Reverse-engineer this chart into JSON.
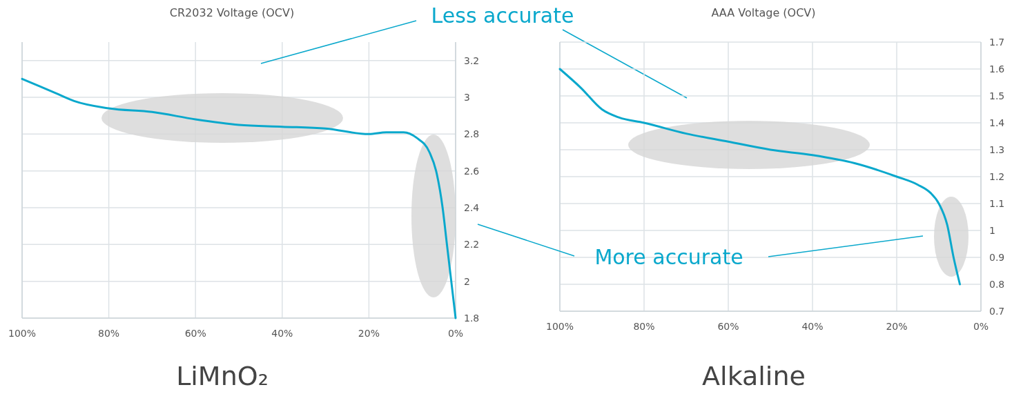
{
  "chart_data": [
    {
      "type": "line",
      "title": "CR2032 Voltage (OCV)",
      "xlabel": "LiMnO₂",
      "annotations": [
        "Less accurate"
      ],
      "x": [
        100,
        92,
        88,
        80,
        70,
        60,
        50,
        40,
        30,
        20,
        16,
        12,
        9,
        6,
        4.5,
        3,
        2,
        0
      ],
      "series": [
        {
          "color": "#0aa8cc",
          "values": [
            3.1,
            3.02,
            2.98,
            2.94,
            2.92,
            2.88,
            2.85,
            2.84,
            2.83,
            2.8,
            2.81,
            2.81,
            2.78,
            2.7,
            2.6,
            2.4,
            2.2,
            1.8
          ]
        }
      ],
      "xlim": [
        100,
        0
      ],
      "xticks": [
        {
          "value": 100,
          "label": "100%"
        },
        {
          "value": 80,
          "label": "80%"
        },
        {
          "value": 60,
          "label": "60%"
        },
        {
          "value": 40,
          "label": "40%"
        },
        {
          "value": 20,
          "label": "20%"
        },
        {
          "value": 0,
          "label": "0%"
        }
      ],
      "ylim": [
        1.8,
        3.3
      ],
      "yticks": [
        1.8,
        2,
        2.2,
        2.4,
        2.6,
        2.8,
        3,
        3.2
      ],
      "grid": true,
      "line_style": "solid",
      "marker": "none"
    },
    {
      "type": "line",
      "title": "AAA Voltage (OCV)",
      "xlabel": "Alkaline",
      "annotations": [
        "More accurate"
      ],
      "x": [
        100,
        95,
        90,
        86,
        80,
        70,
        60,
        50,
        40,
        30,
        20,
        15,
        12,
        10,
        8,
        6.5,
        5
      ],
      "series": [
        {
          "color": "#0aa8cc",
          "values": [
            1.6,
            1.53,
            1.45,
            1.42,
            1.4,
            1.36,
            1.33,
            1.3,
            1.28,
            1.25,
            1.2,
            1.17,
            1.14,
            1.1,
            1.02,
            0.9,
            0.8
          ]
        }
      ],
      "xlim": [
        100,
        0
      ],
      "xticks": [
        {
          "value": 100,
          "label": "100%"
        },
        {
          "value": 80,
          "label": "80%"
        },
        {
          "value": 60,
          "label": "60%"
        },
        {
          "value": 40,
          "label": "40%"
        },
        {
          "value": 20,
          "label": "20%"
        },
        {
          "value": 0,
          "label": "0%"
        }
      ],
      "ylim": [
        0.7,
        1.7
      ],
      "yticks": [
        0.7,
        0.8,
        0.9,
        1,
        1.1,
        1.2,
        1.3,
        1.4,
        1.5,
        1.6,
        1.7
      ],
      "grid": true,
      "line_style": "solid",
      "marker": "none"
    }
  ]
}
